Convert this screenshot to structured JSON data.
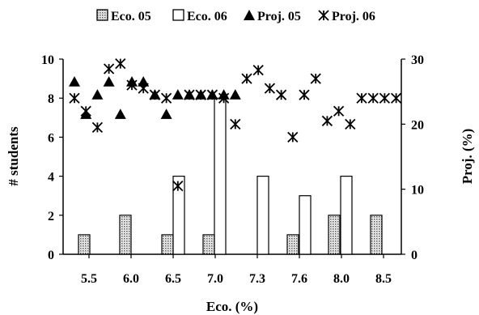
{
  "chart_data": {
    "type": "bar",
    "x_tick_labels": [
      "5.5",
      "6.0",
      "6.5",
      "7.0",
      "7.3",
      "7.6",
      "8.0",
      "8.5"
    ],
    "xlabel": "Eco.  (%)",
    "ylabel": "# students",
    "y2label": "Proj. (%)",
    "ylim": [
      0,
      10
    ],
    "y2lim": [
      0,
      30
    ],
    "y_ticks": [
      0,
      2,
      4,
      6,
      8,
      10
    ],
    "y2_ticks": [
      0,
      10,
      20,
      30
    ],
    "legend_position": "top",
    "series": [
      {
        "name": "Eco. 05",
        "kind": "bar",
        "axis": "left",
        "color": "#c8c8c8",
        "x": [
          5.5,
          6.0,
          6.5,
          6.75,
          7.6,
          8.0,
          8.25
        ],
        "values": [
          1,
          2,
          1,
          1,
          1,
          2,
          2
        ]
      },
      {
        "name": "Eco. 06",
        "kind": "bar",
        "axis": "left",
        "color": "#ffffff",
        "x": [
          6.5,
          6.75,
          7.3,
          7.6,
          8.0
        ],
        "values": [
          4,
          8,
          4,
          3,
          4
        ]
      },
      {
        "name": "Proj. 05",
        "kind": "scatter",
        "marker": "triangle",
        "axis": "right",
        "x": [
          5.5,
          5.55,
          5.65,
          5.75,
          5.85,
          5.95,
          6.05,
          6.15,
          6.25,
          6.35,
          6.45,
          6.55,
          6.65,
          6.75,
          6.85
        ],
        "y": [
          26.5,
          21.5,
          24.5,
          26.5,
          21.5,
          26.5,
          26.5,
          24.5,
          21.5,
          24.5,
          24.5,
          24.5,
          24.5,
          24.5,
          24.5
        ]
      },
      {
        "name": "Proj. 06",
        "kind": "scatter",
        "marker": "star",
        "axis": "right",
        "x": [
          5.5,
          5.55,
          5.65,
          5.75,
          5.85,
          5.95,
          6.05,
          6.15,
          6.25,
          6.35,
          6.45,
          6.55,
          6.65,
          6.75,
          6.85,
          6.95,
          7.05,
          7.15,
          7.25,
          7.35,
          7.45,
          7.55,
          7.65,
          7.75,
          7.85,
          7.95,
          8.05,
          8.15,
          8.25
        ],
        "y": [
          24.0,
          22.0,
          19.5,
          28.5,
          29.3,
          26.0,
          25.5,
          24.5,
          24.0,
          10.5,
          24.5,
          24.5,
          24.5,
          24.0,
          20.0,
          27.0,
          28.3,
          25.5,
          24.5,
          18.0,
          24.5,
          27.0,
          20.5,
          22.0,
          20.0,
          24.0,
          24.0,
          24.0,
          24.0
        ]
      }
    ]
  }
}
